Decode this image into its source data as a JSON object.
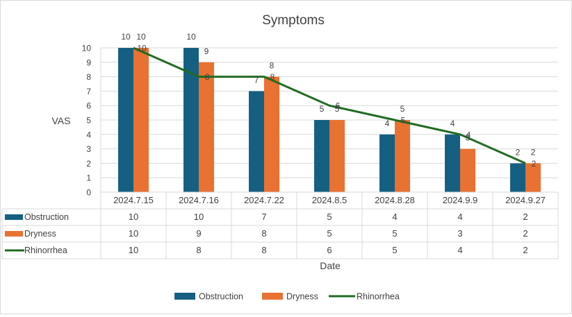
{
  "chart_data": {
    "type": "bar",
    "title": "Symptoms",
    "xlabel": "Date",
    "ylabel": "VAS",
    "ylim": [
      0,
      10
    ],
    "yticks": [
      0,
      1,
      2,
      3,
      4,
      5,
      6,
      7,
      8,
      9,
      10
    ],
    "categories": [
      "2024.7.15",
      "2024.7.16",
      "2024.7.22",
      "2024.8.5",
      "2024.8.28",
      "2024.9.9",
      "2024.9.27"
    ],
    "series": [
      {
        "name": "Obstruction",
        "kind": "bar",
        "color": "#156082",
        "values": [
          10,
          10,
          7,
          5,
          4,
          4,
          2
        ]
      },
      {
        "name": "Dryness",
        "kind": "bar",
        "color": "#e97132",
        "values": [
          10,
          9,
          8,
          5,
          5,
          3,
          2
        ]
      },
      {
        "name": "Rhinorrhea",
        "kind": "line",
        "color": "#1f6b22",
        "values": [
          10,
          8,
          8,
          6,
          5,
          4,
          2
        ]
      }
    ],
    "grid": true,
    "data_table": true,
    "legend_position": "bottom"
  }
}
